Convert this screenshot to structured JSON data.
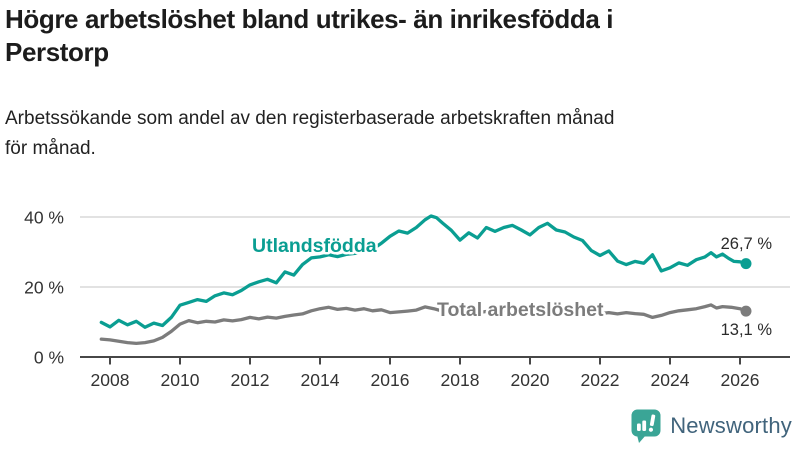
{
  "header": {
    "title_lines": [
      "Högre arbetslöshet bland utrikes- än inrikesfödda i",
      "Perstorp"
    ],
    "subtitle_lines": [
      "Arbetssökande som andel av den registerbaserade arbetskraften månad",
      "för månad."
    ]
  },
  "branding": {
    "logo_text": "Newsworthy",
    "logo_text_color": "#41647c",
    "icon_color": "#3aa596",
    "icon_name": "newsworthy-chart-bubble-icon"
  },
  "chart_data": {
    "type": "line",
    "title": "Högre arbetslöshet bland utrikes- än inrikesfödda i Perstorp",
    "subtitle": "Arbetssökande som andel av den registerbaserade arbetskraften månad för månad.",
    "xlabel": "",
    "ylabel": "",
    "grid": "horizontal",
    "legend_position": "inline-labels",
    "xlim": [
      2007.15,
      2027.4
    ],
    "ylim": [
      0,
      44
    ],
    "x_axis": {
      "ticks": [
        2008,
        2010,
        2012,
        2014,
        2016,
        2018,
        2020,
        2022,
        2024,
        2026
      ]
    },
    "y_axis": {
      "ticks": [
        {
          "value": 0,
          "label": "0 %"
        },
        {
          "value": 20,
          "label": "20 %"
        },
        {
          "value": 40,
          "label": "40 %"
        }
      ]
    },
    "series": [
      {
        "name": "Utlandsfödda",
        "color": "#0a9e92",
        "end_value": 26.7,
        "end_label": "26,7 %",
        "points": [
          [
            2007.75,
            9.9
          ],
          [
            2008,
            8.6
          ],
          [
            2008.25,
            10.5
          ],
          [
            2008.5,
            9.2
          ],
          [
            2008.75,
            10.2
          ],
          [
            2009,
            8.5
          ],
          [
            2009.25,
            9.7
          ],
          [
            2009.5,
            9.0
          ],
          [
            2009.75,
            11.3
          ],
          [
            2010,
            14.8
          ],
          [
            2010.25,
            15.6
          ],
          [
            2010.5,
            16.4
          ],
          [
            2010.75,
            15.9
          ],
          [
            2011,
            17.5
          ],
          [
            2011.25,
            18.3
          ],
          [
            2011.5,
            17.8
          ],
          [
            2011.75,
            19.0
          ],
          [
            2012,
            20.6
          ],
          [
            2012.25,
            21.5
          ],
          [
            2012.5,
            22.2
          ],
          [
            2012.75,
            21.2
          ],
          [
            2013,
            24.3
          ],
          [
            2013.25,
            23.4
          ],
          [
            2013.5,
            26.4
          ],
          [
            2013.75,
            28.3
          ],
          [
            2014,
            28.6
          ],
          [
            2014.25,
            29.2
          ],
          [
            2014.5,
            28.7
          ],
          [
            2014.75,
            29.3
          ],
          [
            2015,
            29.6
          ],
          [
            2015.25,
            30.2
          ],
          [
            2015.5,
            30.8
          ],
          [
            2015.75,
            32.5
          ],
          [
            2016,
            34.5
          ],
          [
            2016.25,
            36.0
          ],
          [
            2016.5,
            35.4
          ],
          [
            2016.75,
            37.0
          ],
          [
            2017,
            39.2
          ],
          [
            2017.17,
            40.3
          ],
          [
            2017.33,
            39.8
          ],
          [
            2017.5,
            38.3
          ],
          [
            2017.75,
            36.2
          ],
          [
            2018,
            33.4
          ],
          [
            2018.25,
            35.5
          ],
          [
            2018.5,
            34.0
          ],
          [
            2018.75,
            37.0
          ],
          [
            2019,
            35.9
          ],
          [
            2019.25,
            37.0
          ],
          [
            2019.5,
            37.6
          ],
          [
            2019.75,
            36.3
          ],
          [
            2020,
            34.9
          ],
          [
            2020.25,
            37.0
          ],
          [
            2020.5,
            38.2
          ],
          [
            2020.75,
            36.3
          ],
          [
            2021,
            35.7
          ],
          [
            2021.25,
            34.3
          ],
          [
            2021.5,
            33.3
          ],
          [
            2021.75,
            30.4
          ],
          [
            2022,
            29.0
          ],
          [
            2022.25,
            30.3
          ],
          [
            2022.5,
            27.4
          ],
          [
            2022.75,
            26.4
          ],
          [
            2023,
            27.3
          ],
          [
            2023.25,
            26.8
          ],
          [
            2023.5,
            29.2
          ],
          [
            2023.75,
            24.6
          ],
          [
            2024,
            25.5
          ],
          [
            2024.25,
            26.9
          ],
          [
            2024.5,
            26.2
          ],
          [
            2024.75,
            27.8
          ],
          [
            2025,
            28.6
          ],
          [
            2025.17,
            29.8
          ],
          [
            2025.33,
            28.6
          ],
          [
            2025.5,
            29.4
          ],
          [
            2025.67,
            28.2
          ],
          [
            2025.83,
            27.3
          ],
          [
            2026,
            27.2
          ],
          [
            2026.17,
            26.7
          ]
        ]
      },
      {
        "name": "Total arbetslöshet",
        "color": "#7c7c7c",
        "end_value": 13.1,
        "end_label": "13,1 %",
        "points": [
          [
            2007.75,
            5.1
          ],
          [
            2008,
            4.9
          ],
          [
            2008.25,
            4.5
          ],
          [
            2008.5,
            4.1
          ],
          [
            2008.75,
            3.9
          ],
          [
            2009,
            4.1
          ],
          [
            2009.25,
            4.6
          ],
          [
            2009.5,
            5.6
          ],
          [
            2009.75,
            7.3
          ],
          [
            2010,
            9.4
          ],
          [
            2010.25,
            10.4
          ],
          [
            2010.5,
            9.8
          ],
          [
            2010.75,
            10.2
          ],
          [
            2011,
            10.0
          ],
          [
            2011.25,
            10.6
          ],
          [
            2011.5,
            10.3
          ],
          [
            2011.75,
            10.7
          ],
          [
            2012,
            11.3
          ],
          [
            2012.25,
            10.9
          ],
          [
            2012.5,
            11.4
          ],
          [
            2012.75,
            11.1
          ],
          [
            2013,
            11.6
          ],
          [
            2013.25,
            12.0
          ],
          [
            2013.5,
            12.3
          ],
          [
            2013.75,
            13.2
          ],
          [
            2014,
            13.8
          ],
          [
            2014.25,
            14.2
          ],
          [
            2014.5,
            13.6
          ],
          [
            2014.75,
            13.9
          ],
          [
            2015,
            13.4
          ],
          [
            2015.25,
            13.8
          ],
          [
            2015.5,
            13.2
          ],
          [
            2015.75,
            13.5
          ],
          [
            2016,
            12.7
          ],
          [
            2016.25,
            12.9
          ],
          [
            2016.5,
            13.1
          ],
          [
            2016.75,
            13.4
          ],
          [
            2017,
            14.3
          ],
          [
            2017.25,
            13.8
          ],
          [
            2017.5,
            13.1
          ],
          [
            2017.75,
            12.9
          ],
          [
            2018,
            12.8
          ],
          [
            2018.25,
            13.1
          ],
          [
            2018.5,
            12.7
          ],
          [
            2018.75,
            13.0
          ],
          [
            2019,
            13.1
          ],
          [
            2019.25,
            13.3
          ],
          [
            2019.5,
            12.9
          ],
          [
            2019.75,
            13.2
          ],
          [
            2020,
            13.0
          ],
          [
            2020.25,
            13.8
          ],
          [
            2020.5,
            14.2
          ],
          [
            2020.75,
            13.9
          ],
          [
            2021,
            13.6
          ],
          [
            2021.25,
            13.4
          ],
          [
            2021.5,
            13.0
          ],
          [
            2021.75,
            12.7
          ],
          [
            2022,
            12.4
          ],
          [
            2022.25,
            12.7
          ],
          [
            2022.5,
            12.3
          ],
          [
            2022.75,
            12.7
          ],
          [
            2023,
            12.4
          ],
          [
            2023.25,
            12.2
          ],
          [
            2023.5,
            11.3
          ],
          [
            2023.75,
            11.9
          ],
          [
            2024,
            12.7
          ],
          [
            2024.25,
            13.2
          ],
          [
            2024.5,
            13.5
          ],
          [
            2024.75,
            13.8
          ],
          [
            2025,
            14.4
          ],
          [
            2025.17,
            14.9
          ],
          [
            2025.33,
            14.0
          ],
          [
            2025.5,
            14.4
          ],
          [
            2025.75,
            14.2
          ],
          [
            2026,
            13.8
          ],
          [
            2026.17,
            13.1
          ]
        ]
      }
    ]
  }
}
